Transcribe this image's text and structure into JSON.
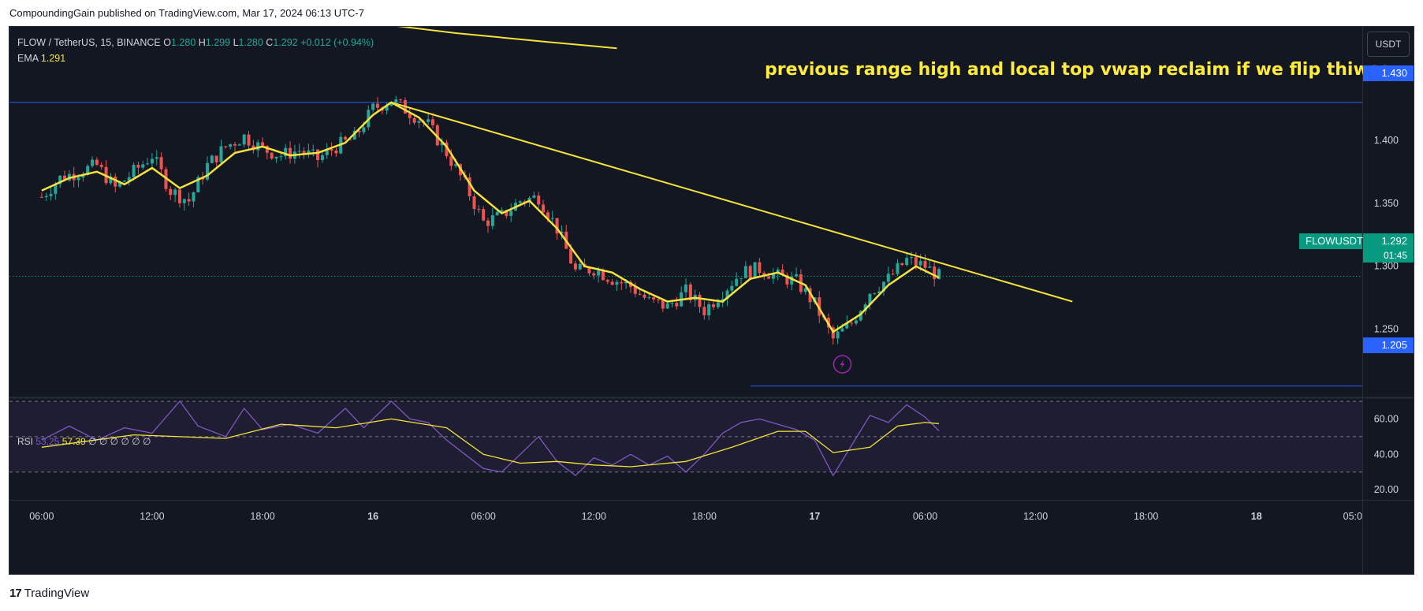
{
  "header": {
    "published_by": "CompoundingGain published on TradingView.com, Mar 17, 2024 06:13 UTC-7"
  },
  "legend": {
    "symbol": "FLOW / TetherUS, 15, BINANCE",
    "open_label": "O",
    "open": "1.280",
    "high_label": "H",
    "high": "1.299",
    "low_label": "L",
    "low": "1.280",
    "close_label": "C",
    "close": "1.292",
    "change": "+0.012 (+0.94%)",
    "ema_label": "EMA",
    "ema_value": "1.291"
  },
  "currency": "USDT",
  "annotation": "previous range high and local top vwap reclaim if we flip thiwss",
  "price_tags": {
    "level_high": "1.430",
    "level_low": "1.205",
    "ticker": "FLOWUSDT",
    "last_price": "1.292",
    "countdown": "01:45"
  },
  "rsi_legend": {
    "label": "RSI",
    "rsi": "53.25",
    "ma": "57.39",
    "extras": "∅ ∅ ∅ ∅ ∅ ∅"
  },
  "footer": {
    "brand": "TradingView",
    "logo_glyph": "17"
  },
  "colors": {
    "background": "#131722",
    "up": "#26a69a",
    "down": "#ef5350",
    "ema": "#f5e33b",
    "trendline": "#f5e33b",
    "level": "#2962ff",
    "rsi": "#7e57c2",
    "grid_text": "#d1d4dc"
  },
  "chart_data": {
    "type": "candlestick",
    "title": "FLOW / TetherUS, 15, BINANCE",
    "x_tick_labels": [
      "06:00",
      "12:00",
      "18:00",
      "16",
      "06:00",
      "12:00",
      "18:00",
      "17",
      "06:00",
      "12:00",
      "18:00",
      "18",
      "05:0"
    ],
    "y_ticks": [
      "1.400",
      "1.350",
      "1.300",
      "1.250"
    ],
    "ylim": [
      1.196,
      1.49
    ],
    "close_path_time_price": [
      [
        0,
        1.355
      ],
      [
        4,
        1.37
      ],
      [
        8,
        1.375
      ],
      [
        12,
        1.38
      ],
      [
        16,
        1.362
      ],
      [
        20,
        1.375
      ],
      [
        24,
        1.388
      ],
      [
        28,
        1.36
      ],
      [
        32,
        1.352
      ],
      [
        36,
        1.38
      ],
      [
        40,
        1.395
      ],
      [
        44,
        1.403
      ],
      [
        48,
        1.393
      ],
      [
        52,
        1.388
      ],
      [
        56,
        1.392
      ],
      [
        60,
        1.385
      ],
      [
        64,
        1.395
      ],
      [
        68,
        1.402
      ],
      [
        72,
        1.425
      ],
      [
        76,
        1.432
      ],
      [
        80,
        1.422
      ],
      [
        84,
        1.412
      ],
      [
        88,
        1.39
      ],
      [
        92,
        1.365
      ],
      [
        96,
        1.335
      ],
      [
        100,
        1.34
      ],
      [
        104,
        1.352
      ],
      [
        108,
        1.355
      ],
      [
        112,
        1.33
      ],
      [
        116,
        1.296
      ],
      [
        120,
        1.298
      ],
      [
        124,
        1.29
      ],
      [
        128,
        1.284
      ],
      [
        132,
        1.272
      ],
      [
        136,
        1.268
      ],
      [
        140,
        1.28
      ],
      [
        144,
        1.265
      ],
      [
        148,
        1.28
      ],
      [
        152,
        1.295
      ],
      [
        156,
        1.298
      ],
      [
        160,
        1.292
      ],
      [
        164,
        1.288
      ],
      [
        168,
        1.27
      ],
      [
        172,
        1.242
      ],
      [
        176,
        1.255
      ],
      [
        180,
        1.28
      ],
      [
        184,
        1.29
      ],
      [
        188,
        1.305
      ],
      [
        192,
        1.3
      ],
      [
        195,
        1.292
      ]
    ],
    "ema_path_time_price": [
      [
        0,
        1.36
      ],
      [
        6,
        1.37
      ],
      [
        12,
        1.375
      ],
      [
        18,
        1.365
      ],
      [
        24,
        1.378
      ],
      [
        30,
        1.362
      ],
      [
        36,
        1.372
      ],
      [
        42,
        1.39
      ],
      [
        48,
        1.395
      ],
      [
        54,
        1.388
      ],
      [
        60,
        1.39
      ],
      [
        66,
        1.398
      ],
      [
        72,
        1.42
      ],
      [
        76,
        1.43
      ],
      [
        82,
        1.418
      ],
      [
        88,
        1.395
      ],
      [
        94,
        1.36
      ],
      [
        100,
        1.342
      ],
      [
        106,
        1.352
      ],
      [
        112,
        1.33
      ],
      [
        118,
        1.3
      ],
      [
        124,
        1.295
      ],
      [
        130,
        1.282
      ],
      [
        136,
        1.272
      ],
      [
        142,
        1.275
      ],
      [
        148,
        1.272
      ],
      [
        154,
        1.29
      ],
      [
        160,
        1.295
      ],
      [
        166,
        1.285
      ],
      [
        172,
        1.248
      ],
      [
        178,
        1.262
      ],
      [
        184,
        1.285
      ],
      [
        190,
        1.3
      ],
      [
        195,
        1.291
      ]
    ],
    "trendline_time_price": [
      [
        76,
        1.43
      ],
      [
        224,
        1.272
      ]
    ],
    "horizontal_levels": [
      {
        "price": 1.43,
        "label": "1.430"
      },
      {
        "price": 1.205,
        "label": "1.205"
      }
    ],
    "last_price": 1.292,
    "time_domain_bars": [
      -7,
      287
    ],
    "rsi": {
      "y_ticks": [
        "60.00",
        "40.00",
        "20.00"
      ],
      "ylim": [
        14.3,
        72.2
      ],
      "band_upper": 70,
      "band_mid": 50,
      "band_lower": 30,
      "values_time_rsi": [
        [
          0,
          48
        ],
        [
          6,
          56
        ],
        [
          12,
          48
        ],
        [
          18,
          55
        ],
        [
          24,
          52
        ],
        [
          30,
          70
        ],
        [
          34,
          56
        ],
        [
          40,
          50
        ],
        [
          44,
          66
        ],
        [
          48,
          54
        ],
        [
          54,
          57
        ],
        [
          60,
          52
        ],
        [
          66,
          66
        ],
        [
          70,
          55
        ],
        [
          76,
          70
        ],
        [
          80,
          60
        ],
        [
          84,
          58
        ],
        [
          88,
          48
        ],
        [
          92,
          40
        ],
        [
          96,
          32
        ],
        [
          100,
          30
        ],
        [
          104,
          40
        ],
        [
          108,
          50
        ],
        [
          112,
          36
        ],
        [
          116,
          28
        ],
        [
          120,
          38
        ],
        [
          124,
          34
        ],
        [
          128,
          40
        ],
        [
          132,
          34
        ],
        [
          136,
          39
        ],
        [
          140,
          30
        ],
        [
          144,
          40
        ],
        [
          148,
          52
        ],
        [
          152,
          58
        ],
        [
          156,
          60
        ],
        [
          160,
          57
        ],
        [
          164,
          54
        ],
        [
          168,
          48
        ],
        [
          172,
          28
        ],
        [
          176,
          45
        ],
        [
          180,
          62
        ],
        [
          184,
          58
        ],
        [
          188,
          68
        ],
        [
          192,
          61
        ],
        [
          195,
          53.25
        ]
      ],
      "ma_time_rsi": [
        [
          0,
          44
        ],
        [
          20,
          51
        ],
        [
          40,
          49
        ],
        [
          52,
          57
        ],
        [
          64,
          55
        ],
        [
          76,
          60
        ],
        [
          88,
          55
        ],
        [
          96,
          40
        ],
        [
          104,
          35
        ],
        [
          112,
          36
        ],
        [
          120,
          34
        ],
        [
          128,
          33
        ],
        [
          140,
          36
        ],
        [
          150,
          44
        ],
        [
          160,
          53
        ],
        [
          166,
          53
        ],
        [
          172,
          41
        ],
        [
          180,
          44
        ],
        [
          186,
          56
        ],
        [
          192,
          58
        ],
        [
          195,
          57.39
        ]
      ]
    }
  }
}
